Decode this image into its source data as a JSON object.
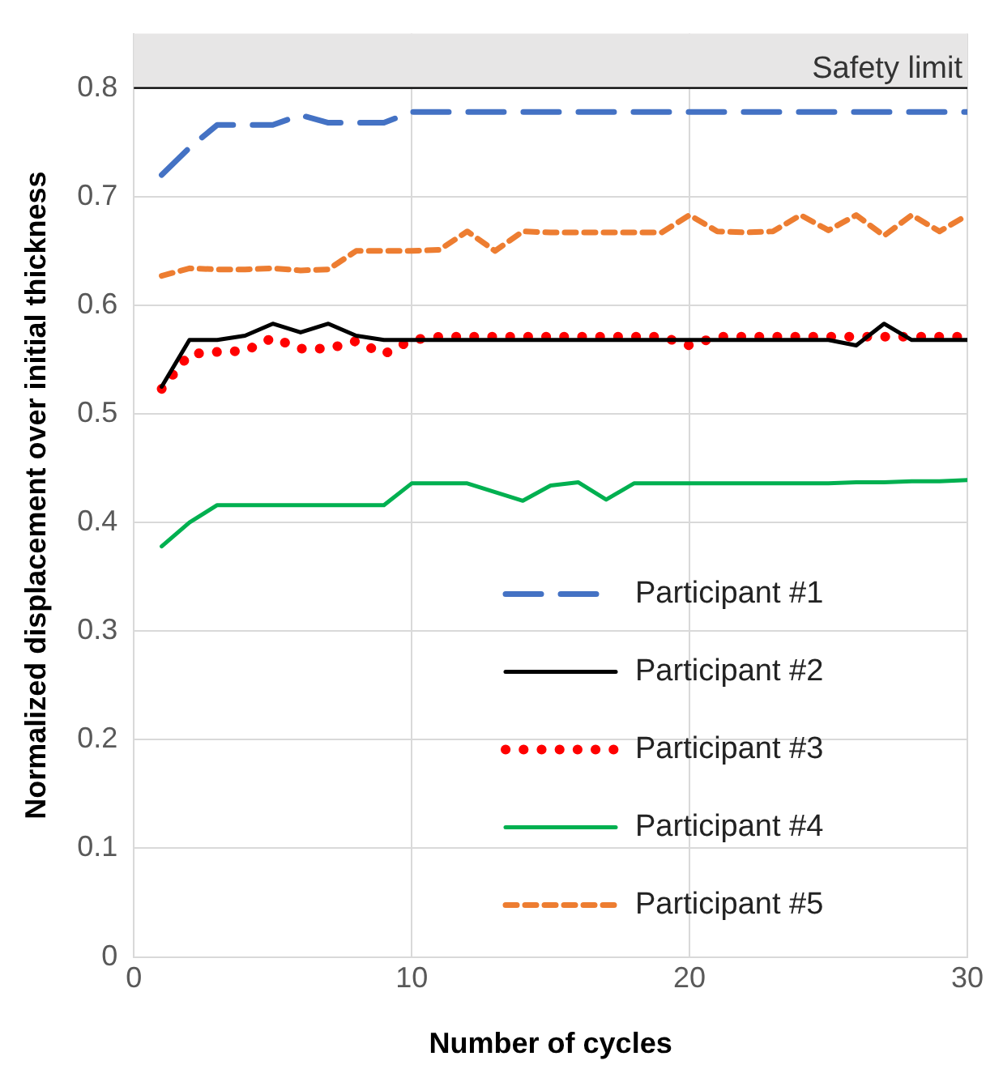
{
  "chart_data": {
    "type": "line",
    "xlabel": "Number of cycles",
    "ylabel": "Normalized displacement over initial thickness",
    "x": [
      1,
      2,
      3,
      4,
      5,
      6,
      7,
      8,
      9,
      10,
      11,
      12,
      13,
      14,
      15,
      16,
      17,
      18,
      19,
      20,
      21,
      22,
      23,
      24,
      25,
      26,
      27,
      28,
      29,
      30
    ],
    "series": [
      {
        "name": "Participant #1",
        "color": "#4472c4",
        "line_style": "dashed",
        "values": [
          0.72,
          0.745,
          0.766,
          0.766,
          0.766,
          0.775,
          0.768,
          0.768,
          0.768,
          0.778,
          0.778,
          0.778,
          0.778,
          0.778,
          0.778,
          0.778,
          0.778,
          0.778,
          0.778,
          0.778,
          0.778,
          0.778,
          0.778,
          0.778,
          0.778,
          0.778,
          0.778,
          0.778,
          0.778,
          0.778
        ]
      },
      {
        "name": "Participant #2",
        "color": "#000000",
        "line_style": "solid",
        "values": [
          0.525,
          0.568,
          0.568,
          0.572,
          0.583,
          0.575,
          0.583,
          0.572,
          0.568,
          0.568,
          0.568,
          0.568,
          0.568,
          0.568,
          0.568,
          0.568,
          0.568,
          0.568,
          0.568,
          0.568,
          0.568,
          0.568,
          0.568,
          0.568,
          0.568,
          0.563,
          0.583,
          0.568,
          0.568,
          0.568
        ]
      },
      {
        "name": "Participant #3",
        "color": "#ff0000",
        "line_style": "dotted",
        "values": [
          0.523,
          0.555,
          0.557,
          0.558,
          0.57,
          0.56,
          0.56,
          0.567,
          0.555,
          0.568,
          0.571,
          0.571,
          0.571,
          0.571,
          0.571,
          0.571,
          0.571,
          0.571,
          0.571,
          0.563,
          0.571,
          0.571,
          0.571,
          0.571,
          0.571,
          0.571,
          0.571,
          0.571,
          0.571,
          0.571
        ]
      },
      {
        "name": "Participant #4",
        "color": "#00b050",
        "line_style": "solid",
        "values": [
          0.378,
          0.4,
          0.416,
          0.416,
          0.416,
          0.416,
          0.416,
          0.416,
          0.416,
          0.436,
          0.436,
          0.436,
          0.428,
          0.42,
          0.434,
          0.437,
          0.421,
          0.436,
          0.436,
          0.436,
          0.436,
          0.436,
          0.436,
          0.436,
          0.436,
          0.437,
          0.437,
          0.438,
          0.438,
          0.439
        ]
      },
      {
        "name": "Participant #5",
        "color": "#ed7d31",
        "line_style": "dashed",
        "values": [
          0.627,
          0.634,
          0.633,
          0.633,
          0.634,
          0.632,
          0.633,
          0.65,
          0.65,
          0.65,
          0.651,
          0.668,
          0.65,
          0.668,
          0.667,
          0.667,
          0.667,
          0.667,
          0.667,
          0.683,
          0.668,
          0.667,
          0.668,
          0.683,
          0.669,
          0.683,
          0.664,
          0.683,
          0.668,
          0.683
        ]
      }
    ],
    "xlim": [
      0,
      30
    ],
    "xticks": [
      0,
      10,
      20,
      30
    ],
    "ylim": [
      0,
      0.85
    ],
    "yticks": [
      0,
      0.1,
      0.2,
      0.3,
      0.4,
      0.5,
      0.6,
      0.7,
      0.8
    ],
    "ref_lines": [
      {
        "axis": "y",
        "value": 0.8,
        "label": "Safety limit",
        "color": "#000000"
      }
    ],
    "bands": [
      {
        "axis": "y",
        "from": 0.8,
        "to": 0.85,
        "color": "#e7e6e6"
      }
    ],
    "grid": true,
    "legend": "bottom right",
    "marker": "none"
  }
}
